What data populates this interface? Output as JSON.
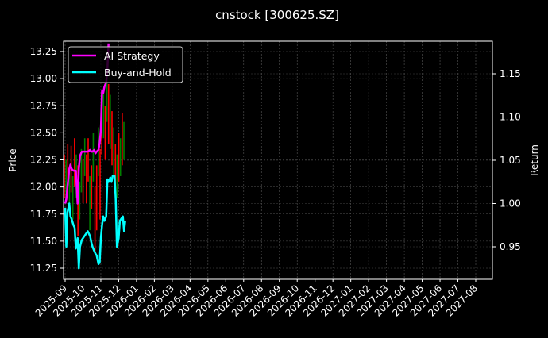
{
  "figure": {
    "title": "cnstock [300625.SZ]",
    "background": "#000000"
  },
  "chart_data": {
    "type": "line",
    "title": "cnstock [300625.SZ]",
    "xlabel": "",
    "ylabel": "Price",
    "y2label": "Return",
    "grid": true,
    "legend_position": "upper left",
    "ylim": [
      11.19,
      13.34
    ],
    "y2lim": [
      0.913,
      1.188
    ],
    "yticks": [
      "11.25",
      "11.50",
      "11.75",
      "12.00",
      "12.25",
      "12.50",
      "12.75",
      "13.00",
      "13.25"
    ],
    "y2ticks": [
      "0.95",
      "1.00",
      "1.05",
      "1.10",
      "1.15"
    ],
    "xticks": [
      "2025-09",
      "2025-10",
      "2025-11",
      "2025-12",
      "2026-01",
      "2026-02",
      "2026-03",
      "2026-04",
      "2026-05",
      "2026-06",
      "2026-07",
      "2026-08",
      "2026-09",
      "2026-10",
      "2026-11",
      "2026-12",
      "2027-01",
      "2027-02",
      "2027-03",
      "2027-04",
      "2027-05",
      "2027-06",
      "2027-07",
      "2027-08"
    ],
    "legend": [
      {
        "name": "AI Strategy",
        "color": "#ff00ff"
      },
      {
        "name": "Buy-and-Hold",
        "color": "#00ffff"
      }
    ],
    "candle_colors": {
      "up": "#ff0000",
      "down": "#008000"
    },
    "series": [
      {
        "name": "AI Strategy",
        "axis": "right",
        "color": "#ff00ff",
        "x": [
          "2025-09-01",
          "2025-09-03",
          "2025-09-05",
          "2025-09-08",
          "2025-09-10",
          "2025-09-12",
          "2025-09-15",
          "2025-09-17",
          "2025-09-19",
          "2025-09-22",
          "2025-09-24",
          "2025-09-26",
          "2025-09-29",
          "2025-10-09",
          "2025-10-13",
          "2025-10-15",
          "2025-10-17",
          "2025-10-20",
          "2025-10-22",
          "2025-10-24",
          "2025-10-27",
          "2025-10-29",
          "2025-10-31",
          "2025-11-03",
          "2025-11-05",
          "2025-11-07",
          "2025-11-10",
          "2025-11-12",
          "2025-11-14"
        ],
        "values": [
          1.0,
          1.005,
          1.02,
          1.04,
          1.045,
          1.04,
          1.038,
          1.038,
          1.038,
          1.0,
          1.04,
          1.055,
          1.06,
          1.06,
          1.062,
          1.06,
          1.06,
          1.062,
          1.058,
          1.06,
          1.062,
          1.07,
          1.085,
          1.13,
          1.128,
          1.135,
          1.14,
          1.155,
          1.185
        ]
      },
      {
        "name": "Buy-and-Hold",
        "axis": "right",
        "color": "#00ffff",
        "x": [
          "2025-09-01",
          "2025-09-03",
          "2025-09-05",
          "2025-09-08",
          "2025-09-10",
          "2025-09-12",
          "2025-09-15",
          "2025-09-17",
          "2025-09-19",
          "2025-09-22",
          "2025-09-24",
          "2025-09-26",
          "2025-09-29",
          "2025-10-09",
          "2025-10-13",
          "2025-10-15",
          "2025-10-17",
          "2025-10-20",
          "2025-10-22",
          "2025-10-24",
          "2025-10-27",
          "2025-10-29",
          "2025-10-31",
          "2025-11-03",
          "2025-11-05",
          "2025-11-07",
          "2025-11-10",
          "2025-11-12",
          "2025-11-14",
          "2025-11-17",
          "2025-11-19",
          "2025-11-21",
          "2025-11-24",
          "2025-11-26",
          "2025-11-28",
          "2025-12-01",
          "2025-12-03",
          "2025-12-05",
          "2025-12-08",
          "2025-12-10",
          "2025-12-12"
        ],
        "values": [
          0.995,
          0.95,
          0.99,
          1.0,
          0.985,
          0.982,
          0.975,
          0.972,
          0.948,
          0.96,
          0.925,
          0.95,
          0.958,
          0.968,
          0.962,
          0.955,
          0.95,
          0.945,
          0.942,
          0.94,
          0.93,
          0.932,
          0.96,
          0.975,
          0.985,
          0.98,
          0.985,
          1.028,
          1.025,
          1.03,
          1.025,
          1.032,
          1.032,
          1.005,
          0.95,
          0.96,
          0.98,
          0.982,
          0.985,
          0.968,
          0.98
        ]
      },
      {
        "name": "Price (candles)",
        "axis": "left",
        "type": "candlestick",
        "approx_range": [
          11.3,
          13.05
        ]
      }
    ]
  }
}
